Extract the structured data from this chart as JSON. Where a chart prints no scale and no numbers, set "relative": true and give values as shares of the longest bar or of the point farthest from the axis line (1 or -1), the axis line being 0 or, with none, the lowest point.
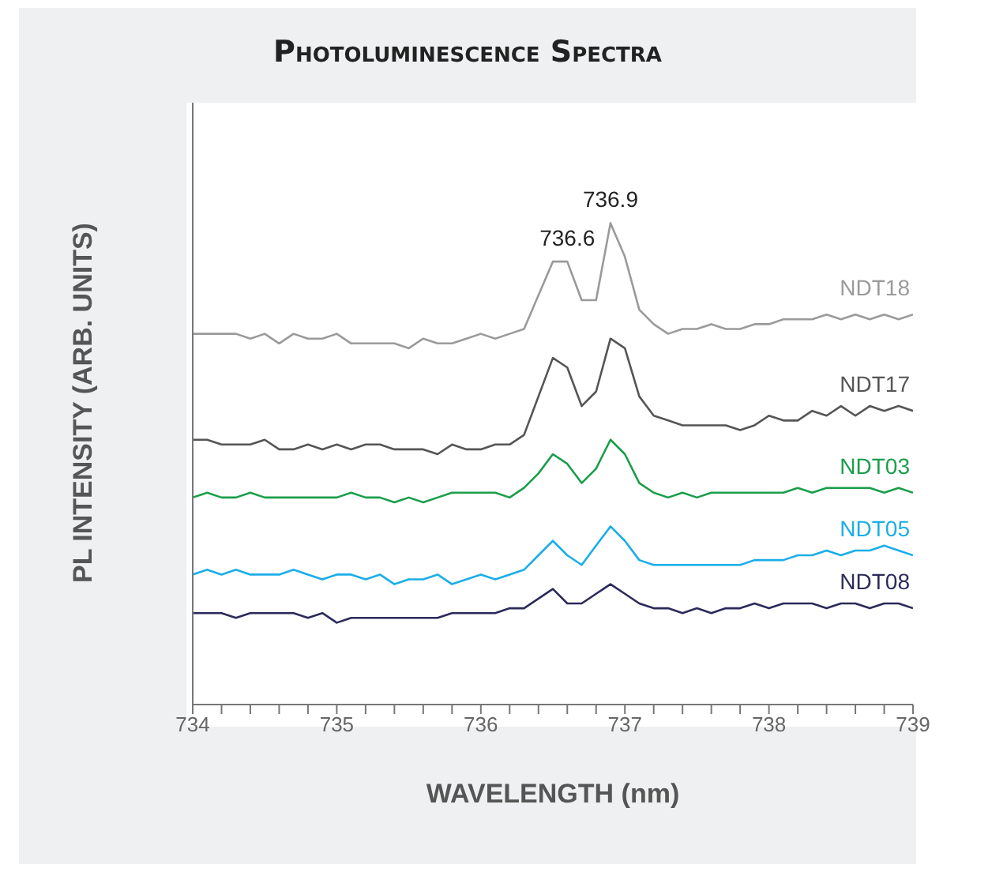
{
  "chart_data": {
    "type": "line",
    "title": "Photoluminescence Spectra",
    "xlabel": "WAVELENGTH (nm)",
    "ylabel": "PL INTENSITY (ARB. UNITS)",
    "relative": true,
    "legend": false,
    "grid": false,
    "marker": "none",
    "x": [
      734.0,
      734.1,
      734.2,
      734.3,
      734.4,
      734.5,
      734.6,
      734.7,
      734.8,
      734.9,
      735.0,
      735.1,
      735.2,
      735.3,
      735.4,
      735.5,
      735.6,
      735.7,
      735.8,
      735.9,
      736.0,
      736.1,
      736.2,
      736.3,
      736.4,
      736.5,
      736.6,
      736.7,
      736.8,
      736.9,
      737.0,
      737.1,
      737.2,
      737.3,
      737.4,
      737.5,
      737.6,
      737.7,
      737.8,
      737.9,
      738.0,
      738.1,
      738.2,
      738.3,
      738.4,
      738.5,
      738.6,
      738.7,
      738.8,
      738.9,
      739.0
    ],
    "xlim": [
      734,
      739
    ],
    "xticks": [
      734,
      {
        "value": 734.2,
        "label": null
      },
      {
        "value": 734.4,
        "label": null
      },
      {
        "value": 734.6,
        "label": null
      },
      {
        "value": 734.8,
        "label": null
      },
      735,
      {
        "value": 735.2,
        "label": null
      },
      {
        "value": 735.4,
        "label": null
      },
      {
        "value": 735.6,
        "label": null
      },
      {
        "value": 735.8,
        "label": null
      },
      736,
      {
        "value": 736.2,
        "label": null
      },
      {
        "value": 736.4,
        "label": null
      },
      {
        "value": 736.6,
        "label": null
      },
      {
        "value": 736.8,
        "label": null
      },
      737,
      {
        "value": 737.2,
        "label": null
      },
      {
        "value": 737.4,
        "label": null
      },
      {
        "value": 737.6,
        "label": null
      },
      {
        "value": 737.8,
        "label": null
      },
      738,
      {
        "value": 738.2,
        "label": null
      },
      {
        "value": 738.4,
        "label": null
      },
      {
        "value": 738.6,
        "label": null
      },
      {
        "value": 738.8,
        "label": null
      },
      739
    ],
    "series": [
      {
        "name": "NDT18",
        "color": "#9a9a9a",
        "values": [
          0.77,
          0.77,
          0.77,
          0.77,
          0.76,
          0.77,
          0.75,
          0.77,
          0.76,
          0.76,
          0.77,
          0.75,
          0.75,
          0.75,
          0.75,
          0.74,
          0.76,
          0.75,
          0.75,
          0.76,
          0.77,
          0.76,
          0.77,
          0.78,
          0.85,
          0.92,
          0.92,
          0.84,
          0.84,
          1.0,
          0.93,
          0.82,
          0.79,
          0.77,
          0.78,
          0.78,
          0.79,
          0.78,
          0.78,
          0.79,
          0.79,
          0.8,
          0.8,
          0.8,
          0.81,
          0.8,
          0.81,
          0.8,
          0.81,
          0.8,
          0.81
        ]
      },
      {
        "name": "NDT17",
        "color": "#555555",
        "values": [
          0.55,
          0.55,
          0.54,
          0.54,
          0.54,
          0.55,
          0.53,
          0.53,
          0.54,
          0.53,
          0.54,
          0.53,
          0.54,
          0.54,
          0.53,
          0.53,
          0.53,
          0.52,
          0.54,
          0.53,
          0.53,
          0.54,
          0.54,
          0.56,
          0.64,
          0.72,
          0.7,
          0.62,
          0.65,
          0.76,
          0.74,
          0.64,
          0.6,
          0.59,
          0.58,
          0.58,
          0.58,
          0.58,
          0.57,
          0.58,
          0.6,
          0.59,
          0.59,
          0.61,
          0.6,
          0.62,
          0.6,
          0.62,
          0.61,
          0.62,
          0.61
        ]
      },
      {
        "name": "NDT03",
        "color": "#1a9e4a",
        "values": [
          0.43,
          0.44,
          0.43,
          0.43,
          0.44,
          0.43,
          0.43,
          0.43,
          0.43,
          0.43,
          0.43,
          0.44,
          0.43,
          0.43,
          0.42,
          0.43,
          0.42,
          0.43,
          0.44,
          0.44,
          0.44,
          0.44,
          0.43,
          0.45,
          0.48,
          0.52,
          0.5,
          0.46,
          0.49,
          0.55,
          0.52,
          0.46,
          0.44,
          0.43,
          0.44,
          0.43,
          0.44,
          0.44,
          0.44,
          0.44,
          0.44,
          0.44,
          0.45,
          0.44,
          0.45,
          0.45,
          0.45,
          0.45,
          0.44,
          0.45,
          0.44
        ]
      },
      {
        "name": "NDT05",
        "color": "#1aaee8",
        "values": [
          0.27,
          0.28,
          0.27,
          0.28,
          0.27,
          0.27,
          0.27,
          0.28,
          0.27,
          0.26,
          0.27,
          0.27,
          0.26,
          0.27,
          0.25,
          0.26,
          0.26,
          0.27,
          0.25,
          0.26,
          0.27,
          0.26,
          0.27,
          0.28,
          0.31,
          0.34,
          0.31,
          0.29,
          0.33,
          0.37,
          0.34,
          0.3,
          0.29,
          0.29,
          0.29,
          0.29,
          0.29,
          0.29,
          0.29,
          0.3,
          0.3,
          0.3,
          0.31,
          0.31,
          0.32,
          0.31,
          0.32,
          0.32,
          0.33,
          0.32,
          0.31
        ]
      },
      {
        "name": "NDT08",
        "color": "#2b2a5a",
        "values": [
          0.19,
          0.19,
          0.19,
          0.18,
          0.19,
          0.19,
          0.19,
          0.19,
          0.18,
          0.19,
          0.17,
          0.18,
          0.18,
          0.18,
          0.18,
          0.18,
          0.18,
          0.18,
          0.19,
          0.19,
          0.19,
          0.19,
          0.2,
          0.2,
          0.22,
          0.24,
          0.21,
          0.21,
          0.23,
          0.25,
          0.23,
          0.21,
          0.2,
          0.2,
          0.19,
          0.2,
          0.19,
          0.2,
          0.2,
          0.21,
          0.2,
          0.21,
          0.21,
          0.21,
          0.2,
          0.21,
          0.21,
          0.2,
          0.21,
          0.21,
          0.2
        ]
      }
    ],
    "annotations": [
      {
        "text": "736.6",
        "x": 736.6,
        "y": 0.92
      },
      {
        "text": "736.9",
        "x": 736.9,
        "y": 1.0
      }
    ]
  }
}
